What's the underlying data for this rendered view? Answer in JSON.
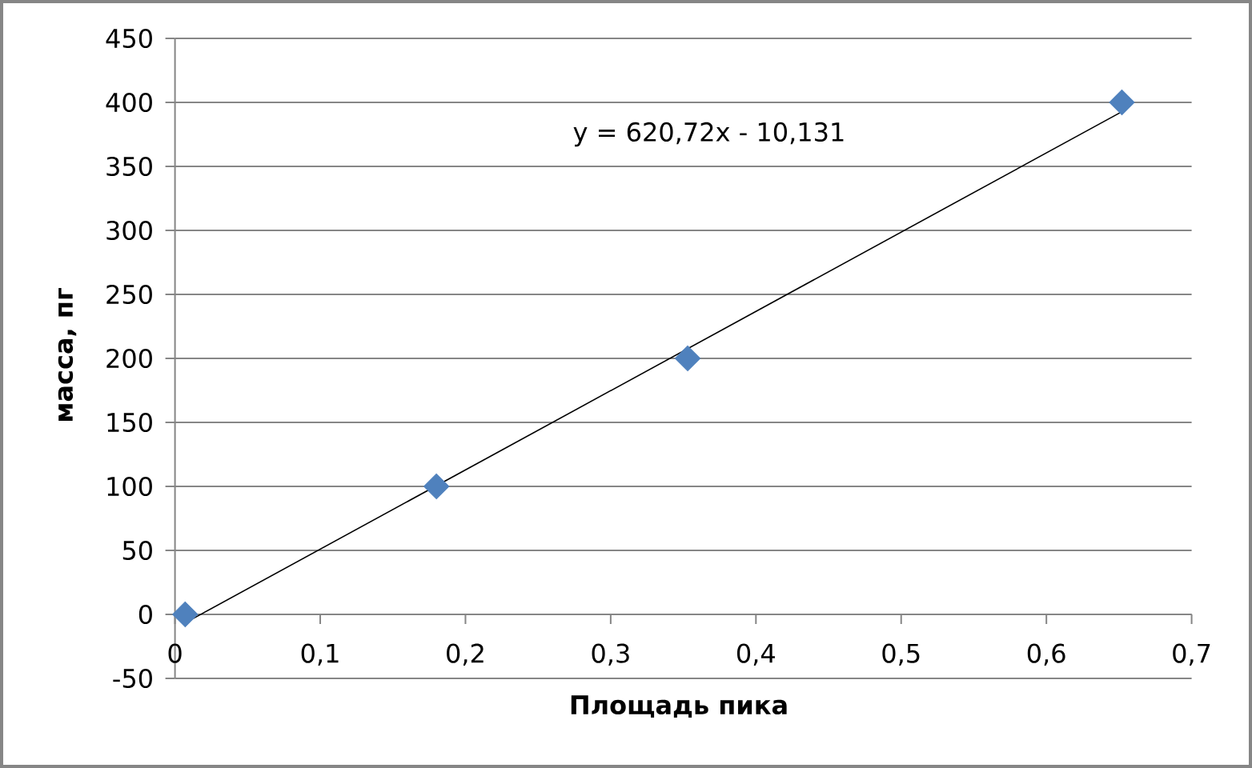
{
  "chart_data": {
    "type": "scatter",
    "xlabel": "Площадь пика",
    "ylabel": "масса, пг",
    "x": [
      0.007,
      0.18,
      0.353,
      0.652
    ],
    "series": [
      {
        "color": "#4f81bd",
        "values": [
          0,
          100,
          200,
          400
        ],
        "marker": "diamond"
      },
      {
        "type": "line",
        "x": [
          0.008,
          0.654
        ],
        "values": [
          -6,
          394
        ],
        "color": "#000000",
        "marker": "none"
      }
    ],
    "xlim": [
      0,
      0.7
    ],
    "ylim": [
      -50,
      450
    ],
    "xticks": [
      0,
      {
        "value": 0.1,
        "label": "0,1"
      },
      {
        "value": 0.2,
        "label": "0,2"
      },
      {
        "value": 0.3,
        "label": "0,3"
      },
      {
        "value": 0.4,
        "label": "0,4"
      },
      {
        "value": 0.5,
        "label": "0,5"
      },
      {
        "value": 0.6,
        "label": "0,6"
      },
      {
        "value": 0.7,
        "label": "0,7"
      }
    ],
    "yticks": [
      -50,
      0,
      50,
      100,
      150,
      200,
      250,
      300,
      350,
      400,
      450
    ],
    "grid": "y",
    "annotations": [
      "y = 620,72x - 10,131"
    ]
  }
}
